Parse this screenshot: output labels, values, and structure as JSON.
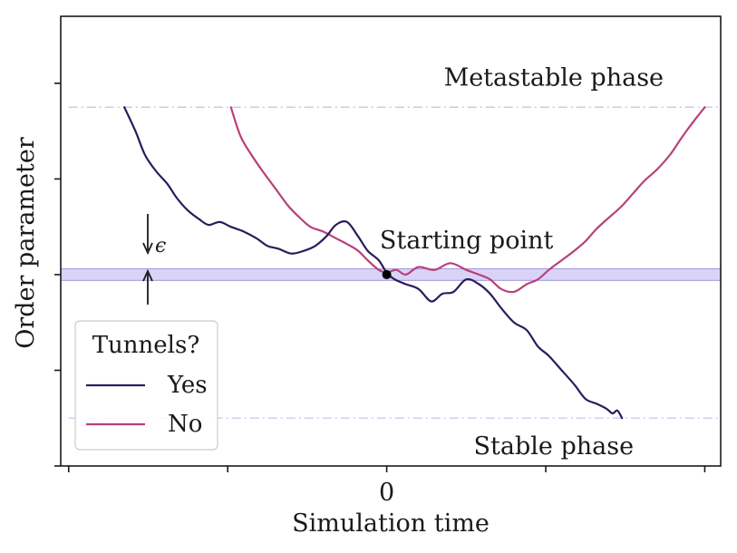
{
  "chart_data": {
    "type": "line",
    "title": "",
    "xlabel": "Simulation time",
    "ylabel": "Order parameter",
    "x_tick_labels": [
      "",
      "",
      "0",
      "",
      ""
    ],
    "xlim": [
      -2.05,
      2.1
    ],
    "ylim": [
      -2.0,
      2.7
    ],
    "grid": false,
    "legend": {
      "title": "Tunnels?",
      "location": "lower-left",
      "entries": [
        "Yes",
        "No"
      ]
    },
    "starting_point": {
      "x": 0,
      "y": 0.0,
      "label": "Starting point"
    },
    "band": {
      "center": 0,
      "half_width": 0.06,
      "label": "ϵ"
    },
    "reference_lines": [
      {
        "y": 1.75,
        "label": "Metastable phase"
      },
      {
        "y": -1.5,
        "label": "Stable phase"
      }
    ],
    "series": [
      {
        "name": "Yes",
        "color": "#2d1b5c",
        "x": [
          -1.65,
          -1.58,
          -1.52,
          -1.45,
          -1.38,
          -1.32,
          -1.25,
          -1.18,
          -1.12,
          -1.05,
          -0.98,
          -0.9,
          -0.82,
          -0.75,
          -0.68,
          -0.6,
          -0.52,
          -0.45,
          -0.38,
          -0.32,
          -0.25,
          -0.18,
          -0.12,
          -0.05,
          0.0,
          0.05,
          0.12,
          0.2,
          0.28,
          0.35,
          0.42,
          0.5,
          0.58,
          0.65,
          0.72,
          0.8,
          0.88,
          0.95,
          1.02,
          1.1,
          1.18,
          1.25,
          1.32,
          1.38,
          1.42,
          1.45,
          1.48
        ],
        "y": [
          1.75,
          1.5,
          1.25,
          1.08,
          0.95,
          0.8,
          0.67,
          0.58,
          0.52,
          0.55,
          0.5,
          0.45,
          0.38,
          0.3,
          0.27,
          0.22,
          0.25,
          0.3,
          0.4,
          0.52,
          0.55,
          0.4,
          0.25,
          0.15,
          0.02,
          -0.05,
          -0.1,
          -0.15,
          -0.28,
          -0.2,
          -0.18,
          -0.05,
          -0.1,
          -0.2,
          -0.35,
          -0.5,
          -0.58,
          -0.75,
          -0.85,
          -1.0,
          -1.15,
          -1.3,
          -1.35,
          -1.4,
          -1.45,
          -1.42,
          -1.5
        ]
      },
      {
        "name": "No",
        "color": "#b8407a",
        "x": [
          -0.98,
          -0.92,
          -0.85,
          -0.78,
          -0.7,
          -0.62,
          -0.55,
          -0.48,
          -0.4,
          -0.32,
          -0.25,
          -0.18,
          -0.12,
          -0.05,
          0.0,
          0.06,
          0.12,
          0.2,
          0.3,
          0.4,
          0.5,
          0.58,
          0.65,
          0.72,
          0.8,
          0.88,
          0.95,
          1.02,
          1.1,
          1.18,
          1.25,
          1.32,
          1.4,
          1.48,
          1.55,
          1.62,
          1.7,
          1.78,
          1.85,
          1.92,
          2.0
        ],
        "y": [
          1.75,
          1.45,
          1.25,
          1.08,
          0.9,
          0.72,
          0.6,
          0.5,
          0.45,
          0.38,
          0.32,
          0.25,
          0.15,
          0.05,
          0.02,
          0.05,
          0.0,
          0.08,
          0.05,
          0.12,
          0.05,
          0.0,
          -0.05,
          -0.15,
          -0.18,
          -0.1,
          -0.05,
          0.05,
          0.15,
          0.25,
          0.35,
          0.48,
          0.6,
          0.72,
          0.85,
          0.98,
          1.1,
          1.25,
          1.42,
          1.58,
          1.75
        ]
      }
    ]
  }
}
